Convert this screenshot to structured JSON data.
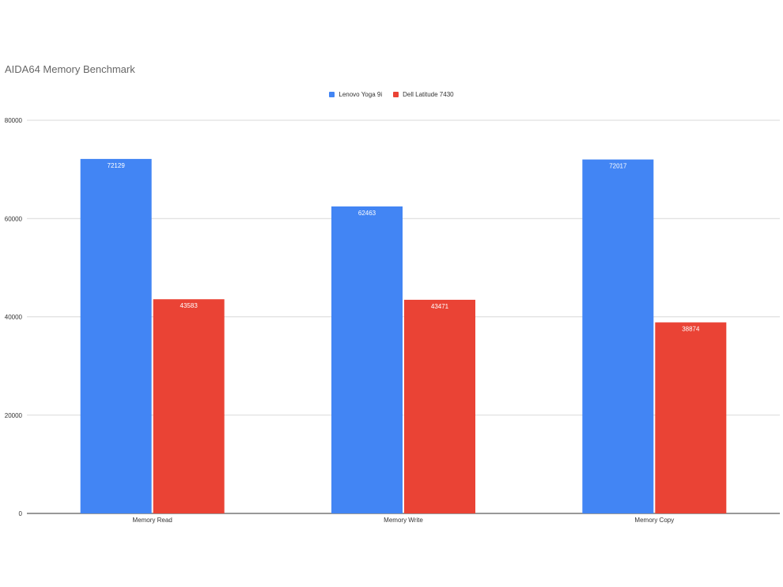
{
  "chart_data": {
    "type": "bar",
    "title": "AIDA64 Memory Benchmark",
    "categories": [
      "Memory Read",
      "Memory Write",
      "Memory Copy"
    ],
    "series": [
      {
        "name": "Lenovo Yoga 9i",
        "color": "#4285f4",
        "values": [
          72129,
          62463,
          72017
        ]
      },
      {
        "name": "Dell Latitude 7430",
        "color": "#ea4335",
        "values": [
          43583,
          43471,
          38874
        ]
      }
    ],
    "ylim": [
      0,
      80000
    ],
    "yticks": [
      "0",
      "20000",
      "40000",
      "60000",
      "80000"
    ],
    "grid": true,
    "legend_position": "top-center",
    "data_labels": true
  }
}
